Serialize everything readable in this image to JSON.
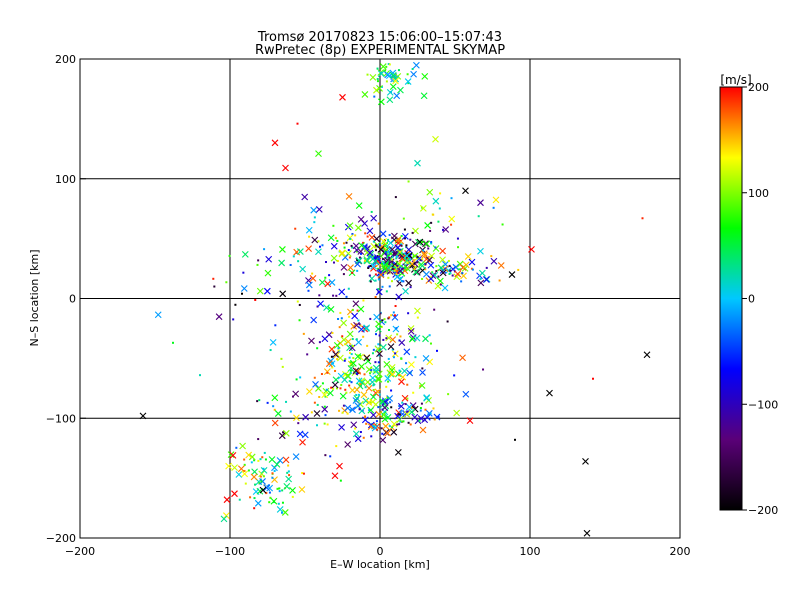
{
  "chart_data": {
    "type": "scatter",
    "title": "Tromsø 20170823 15:06:00–15:07:43",
    "subtitle": "RwPretec (8p) EXPERIMENTAL SKYMAP",
    "xlabel": "E–W location [km]",
    "ylabel": "N–S location [km]",
    "xlim": [
      -200,
      200
    ],
    "ylim": [
      -200,
      200
    ],
    "xticks": [
      -200,
      -100,
      0,
      100,
      200
    ],
    "yticks": [
      -200,
      -100,
      0,
      100,
      200
    ],
    "xtick_labels": [
      "−200",
      "−100",
      "0",
      "100",
      "200"
    ],
    "ytick_labels": [
      "−200",
      "−100",
      "0",
      "100",
      "200"
    ],
    "grid": true,
    "colorbar": {
      "label": "[m/s]",
      "range": [
        -200,
        200
      ],
      "ticks": [
        200,
        100,
        0,
        -100,
        -200
      ],
      "tick_labels": [
        "200",
        "100",
        "0",
        "−100",
        "−200"
      ],
      "colors": [
        "#000000",
        "#5a0078",
        "#0000ff",
        "#00c8ff",
        "#00ff00",
        "#ffff00",
        "#ff0000"
      ]
    },
    "markers": [
      "x",
      "dot"
    ],
    "clusters": [
      {
        "x": 8,
        "y": 33,
        "sx": 14,
        "sy": 10,
        "n": 230,
        "vmin": -200,
        "vmax": 200
      },
      {
        "x": 40,
        "y": 24,
        "sx": 22,
        "sy": 9,
        "n": 90,
        "vmin": -200,
        "vmax": 200
      },
      {
        "x": -22,
        "y": 38,
        "sx": 22,
        "sy": 14,
        "n": 80,
        "vmin": -200,
        "vmax": 200
      },
      {
        "x": 5,
        "y": 185,
        "sx": 9,
        "sy": 8,
        "n": 45,
        "vmin": -40,
        "vmax": 140
      },
      {
        "x": -15,
        "y": -65,
        "sx": 14,
        "sy": 16,
        "n": 140,
        "vmin": -20,
        "vmax": 200
      },
      {
        "x": 12,
        "y": -100,
        "sx": 15,
        "sy": 10,
        "n": 95,
        "vmin": -200,
        "vmax": 200
      },
      {
        "x": -15,
        "y": -25,
        "sx": 20,
        "sy": 18,
        "n": 80,
        "vmin": -200,
        "vmax": 200
      },
      {
        "x": -75,
        "y": -150,
        "sx": 11,
        "sy": 14,
        "n": 85,
        "vmin": -40,
        "vmax": 200
      },
      {
        "x": -40,
        "y": -95,
        "sx": 28,
        "sy": 22,
        "n": 60,
        "vmin": -200,
        "vmax": 200
      },
      {
        "x": -55,
        "y": 10,
        "sx": 30,
        "sy": 25,
        "n": 40,
        "vmin": -200,
        "vmax": 200
      },
      {
        "x": 15,
        "y": -45,
        "sx": 22,
        "sy": 25,
        "n": 60,
        "vmin": -200,
        "vmax": 200
      },
      {
        "x": 20,
        "y": 65,
        "sx": 30,
        "sy": 14,
        "n": 40,
        "vmin": -200,
        "vmax": 200
      }
    ],
    "points": [
      {
        "x": -158,
        "y": -98,
        "v": -200,
        "m": "x"
      },
      {
        "x": 178,
        "y": -47,
        "v": -200,
        "m": "x"
      },
      {
        "x": 113,
        "y": -79,
        "v": -200,
        "m": "x"
      },
      {
        "x": 137,
        "y": -136,
        "v": -200,
        "m": "x"
      },
      {
        "x": 138,
        "y": -196,
        "v": -200,
        "m": "x"
      },
      {
        "x": 101,
        "y": 41,
        "v": 200,
        "m": "x"
      },
      {
        "x": 175,
        "y": 67,
        "v": 190,
        "m": "dot"
      },
      {
        "x": 142,
        "y": -67,
        "v": 200,
        "m": "dot"
      },
      {
        "x": -63,
        "y": 109,
        "v": 200,
        "m": "x"
      },
      {
        "x": -70,
        "y": 130,
        "v": 200,
        "m": "x"
      },
      {
        "x": -25,
        "y": 168,
        "v": 200,
        "m": "x"
      },
      {
        "x": -55,
        "y": 146,
        "v": 200,
        "m": "dot"
      },
      {
        "x": 37,
        "y": 133,
        "v": 120,
        "m": "x"
      },
      {
        "x": -41,
        "y": 121,
        "v": 80,
        "m": "x"
      },
      {
        "x": 25,
        "y": 113,
        "v": 20,
        "m": "x"
      },
      {
        "x": 57,
        "y": 90,
        "v": -200,
        "m": "x"
      },
      {
        "x": 67,
        "y": 80,
        "v": -120,
        "m": "x"
      },
      {
        "x": 88,
        "y": 20,
        "v": -200,
        "m": "x"
      },
      {
        "x": -120,
        "y": -64,
        "v": 20,
        "m": "dot"
      },
      {
        "x": -138,
        "y": -37,
        "v": 60,
        "m": "dot"
      },
      {
        "x": -92,
        "y": 4,
        "v": -200,
        "m": "dot"
      },
      {
        "x": -104,
        "y": -184,
        "v": 30,
        "m": "x"
      },
      {
        "x": -102,
        "y": -168,
        "v": 200,
        "m": "x"
      },
      {
        "x": -97,
        "y": -163,
        "v": 200,
        "m": "x"
      },
      {
        "x": -98,
        "y": -131,
        "v": 200,
        "m": "x"
      },
      {
        "x": 90,
        "y": -118,
        "v": -200,
        "m": "dot"
      },
      {
        "x": 60,
        "y": -102,
        "v": 200,
        "m": "x"
      },
      {
        "x": -30,
        "y": -148,
        "v": 200,
        "m": "x"
      },
      {
        "x": -27,
        "y": -140,
        "v": 200,
        "m": "x"
      },
      {
        "x": -42,
        "y": -96,
        "v": -180,
        "m": "x"
      },
      {
        "x": -78,
        "y": -160,
        "v": -200,
        "m": "x"
      }
    ]
  }
}
